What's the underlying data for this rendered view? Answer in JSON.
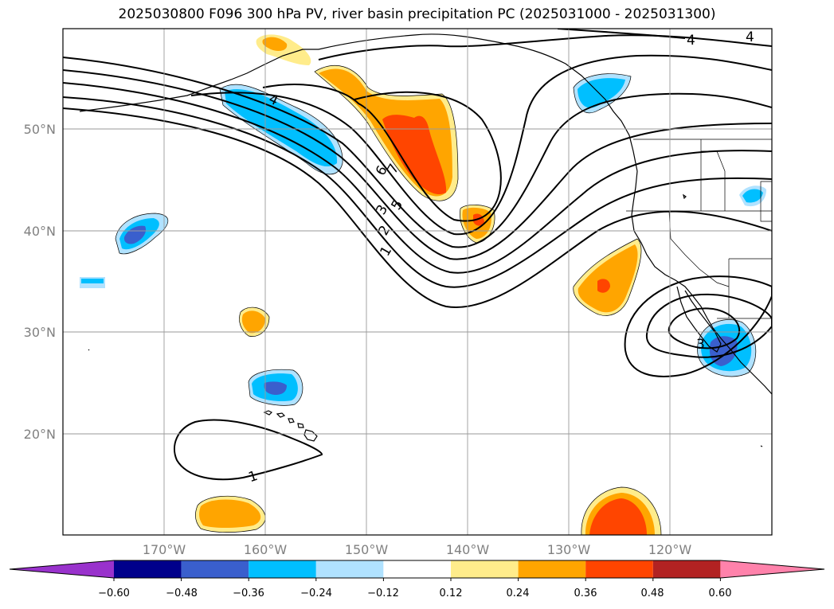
{
  "title": "2025030800 F096 300 hPa PV, river basin precipitation PC (2025031000 - 2025031300)",
  "latitude_labels": [
    "50°N",
    "40°N",
    "30°N",
    "20°N"
  ],
  "longitude_labels": [
    "170°W",
    "160°W",
    "150°W",
    "140°W",
    "130°W",
    "120°W"
  ],
  "contour_labels": [
    "4",
    "4",
    "4",
    "7",
    "6",
    "5",
    "3",
    "2",
    "1",
    "1",
    "3"
  ],
  "colorbar": {
    "tick_labels": [
      "−0.60",
      "−0.48",
      "−0.36",
      "−0.24",
      "−0.12",
      "0.12",
      "0.24",
      "0.36",
      "0.48",
      "0.60"
    ],
    "colors": [
      "#9932cc",
      "#00008b",
      "#3a5fcd",
      "#00bfff",
      "#b0e2ff",
      "#ffffff",
      "#ffec8b",
      "#ffa500",
      "#ff4500",
      "#b22222",
      "#ff82ab"
    ]
  },
  "colors": {
    "neg_light": "#b0e2ff",
    "neg_mid": "#00bfff",
    "neg_strong": "#3a5fcd",
    "pos_light": "#ffec8b",
    "pos_mid": "#ffa500",
    "pos_strong": "#ff4500"
  }
}
